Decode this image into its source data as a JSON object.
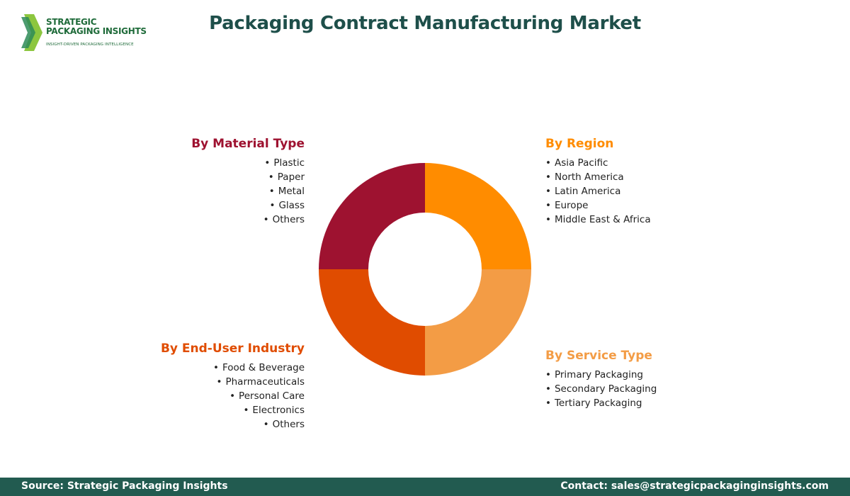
{
  "logo": {
    "line1": "STRATEGIC",
    "line2": "PACKAGING INSIGHTS",
    "tagline": "INSIGHT-DRIVEN PACKAGING INTELLIGENCE"
  },
  "title": "Packaging Contract Manufacturing Market",
  "segments": {
    "material": {
      "title": "By Material Type",
      "color": "#9e1230",
      "items": [
        "Plastic",
        "Paper",
        "Metal",
        "Glass",
        "Others"
      ]
    },
    "region": {
      "title": "By Region",
      "color": "#ff8c00",
      "items": [
        "Asia Pacific",
        "North America",
        "Latin America",
        "Europe",
        "Middle East & Africa"
      ]
    },
    "service": {
      "title": "By Service Type",
      "color": "#f39c45",
      "items": [
        "Primary Packaging",
        "Secondary Packaging",
        "Tertiary Packaging"
      ]
    },
    "enduser": {
      "title": "By End-User Industry",
      "color": "#e04c00",
      "items": [
        "Food & Beverage",
        "Pharmaceuticals",
        "Personal Care",
        "Electronics",
        "Others"
      ]
    }
  },
  "footer": {
    "source": "Source: Strategic Packaging Insights",
    "contact": "Contact: sales@strategicpackaginginsights.com"
  }
}
